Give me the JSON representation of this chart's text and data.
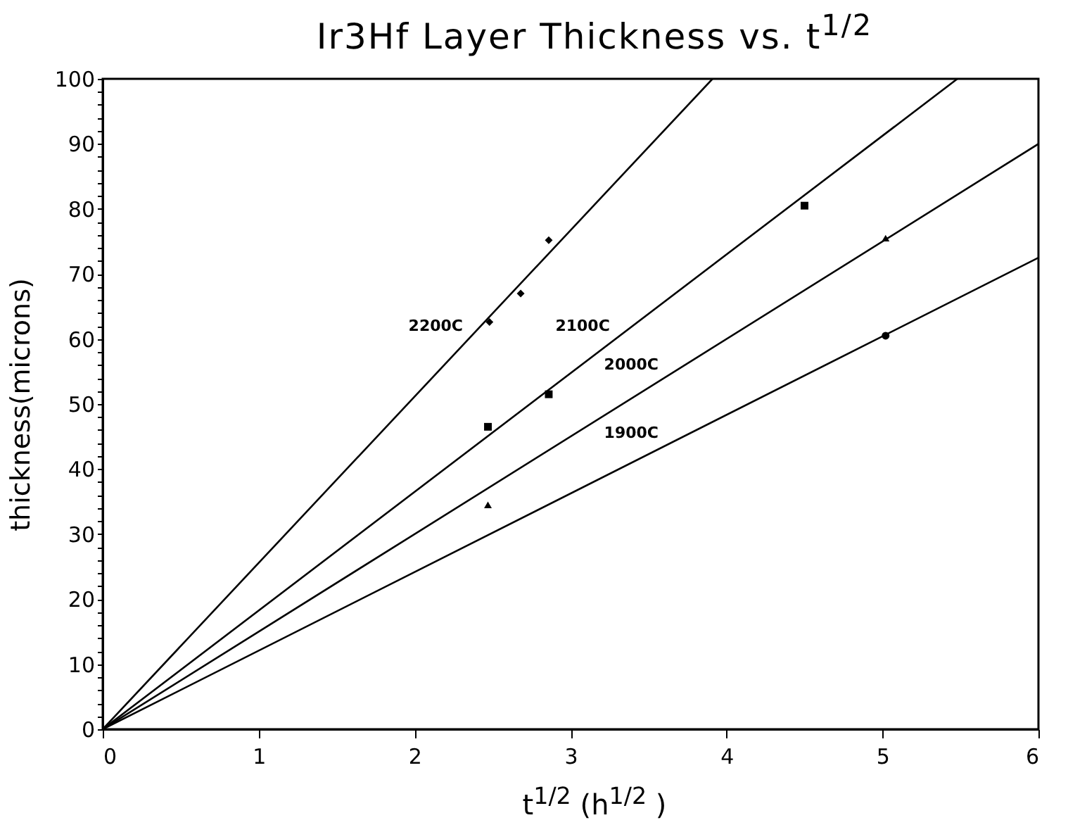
{
  "chart_data": {
    "type": "line",
    "title": "Ir3Hf Layer Thickness vs.  t$^{1/2}$",
    "xlabel": "t$^{1/2}$ (h$^{1/2}$ )",
    "ylabel": "thickness(microns)",
    "xlim": [
      0,
      6
    ],
    "ylim": [
      0,
      100
    ],
    "xticks": [
      0,
      1,
      2,
      3,
      4,
      5,
      6
    ],
    "yticks": [
      0,
      {
        "value": 2,
        "label": null
      },
      {
        "value": 4,
        "label": null
      },
      {
        "value": 6,
        "label": null
      },
      {
        "value": 8,
        "label": null
      },
      10,
      {
        "value": 12,
        "label": null
      },
      {
        "value": 14,
        "label": null
      },
      {
        "value": 16,
        "label": null
      },
      {
        "value": 18,
        "label": null
      },
      20,
      {
        "value": 22,
        "label": null
      },
      {
        "value": 24,
        "label": null
      },
      {
        "value": 26,
        "label": null
      },
      {
        "value": 28,
        "label": null
      },
      30,
      {
        "value": 32,
        "label": null
      },
      {
        "value": 34,
        "label": null
      },
      {
        "value": 36,
        "label": null
      },
      {
        "value": 38,
        "label": null
      },
      40,
      {
        "value": 42,
        "label": null
      },
      {
        "value": 44,
        "label": null
      },
      {
        "value": 46,
        "label": null
      },
      {
        "value": 48,
        "label": null
      },
      50,
      {
        "value": 52,
        "label": null
      },
      {
        "value": 54,
        "label": null
      },
      {
        "value": 56,
        "label": null
      },
      {
        "value": 58,
        "label": null
      },
      60,
      {
        "value": 62,
        "label": null
      },
      {
        "value": 64,
        "label": null
      },
      {
        "value": 66,
        "label": null
      },
      {
        "value": 68,
        "label": null
      },
      70,
      {
        "value": 72,
        "label": null
      },
      {
        "value": 74,
        "label": null
      },
      {
        "value": 76,
        "label": null
      },
      {
        "value": 78,
        "label": null
      },
      80,
      {
        "value": 82,
        "label": null
      },
      {
        "value": 84,
        "label": null
      },
      {
        "value": 86,
        "label": null
      },
      {
        "value": 88,
        "label": null
      },
      90,
      {
        "value": 92,
        "label": null
      },
      {
        "value": 94,
        "label": null
      },
      {
        "value": 96,
        "label": null
      },
      {
        "value": 98,
        "label": null
      },
      100
    ],
    "grid": false,
    "legend": false,
    "series": [
      {
        "name": "2200C",
        "color": "#000000",
        "marker": "none",
        "x": [
          0,
          3.91
        ],
        "values": [
          0,
          100
        ]
      },
      {
        "name": "2100C",
        "color": "#000000",
        "marker": "none",
        "x": [
          0,
          5.48
        ],
        "values": [
          0,
          100
        ]
      },
      {
        "name": "2000C",
        "color": "#000000",
        "marker": "none",
        "x": [
          0,
          6
        ],
        "values": [
          0,
          90
        ]
      },
      {
        "name": "1900C",
        "color": "#000000",
        "marker": "none",
        "x": [
          0,
          6
        ],
        "values": [
          0,
          72.5
        ]
      },
      {
        "type": "scatter",
        "color": "#000000",
        "marker": "diamond",
        "x": [
          2.48,
          2.68,
          2.86
        ],
        "values": [
          62.6,
          67,
          75.2
        ]
      },
      {
        "type": "scatter",
        "color": "#000000",
        "marker": "square",
        "x": [
          2.47,
          2.86,
          4.5
        ],
        "values": [
          46.5,
          51.5,
          80.5
        ]
      },
      {
        "type": "scatter",
        "color": "#000000",
        "marker": "triangle",
        "x": [
          2.47,
          5.02
        ],
        "values": [
          34.5,
          75.5
        ]
      },
      {
        "type": "scatter",
        "color": "#000000",
        "marker": "circle",
        "x": [
          5.02
        ],
        "values": [
          60.5
        ]
      }
    ]
  }
}
